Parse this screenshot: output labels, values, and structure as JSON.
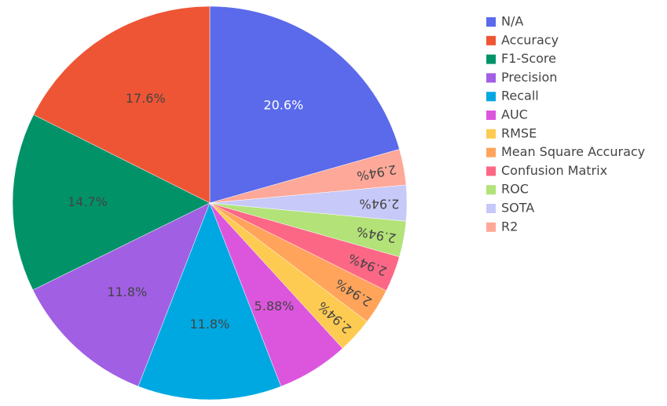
{
  "chart_data": {
    "type": "pie",
    "categories": [
      "N/A",
      "Accuracy",
      "F1-Score",
      "Precision",
      "Recall",
      "AUC",
      "RMSE",
      "Mean Square Accuracy",
      "Confusion Matrix",
      "ROC",
      "SOTA",
      "R2"
    ],
    "values": [
      20.6,
      17.6,
      14.7,
      11.8,
      11.8,
      5.88,
      2.94,
      2.94,
      2.94,
      2.94,
      2.94,
      2.94
    ],
    "value_labels": [
      "20.6%",
      "17.6%",
      "14.7%",
      "11.8%",
      "11.8%",
      "5.88%",
      "2.94%",
      "2.94%",
      "2.94%",
      "2.94%",
      "2.94%",
      "2.94%"
    ],
    "colors": [
      "#5a6aea",
      "#ee5535",
      "#019268",
      "#a15fe3",
      "#00a8e2",
      "#dc56dd",
      "#fecb52",
      "#ffa45a",
      "#fd6786",
      "#b2e278",
      "#c7c9f8",
      "#fea899"
    ],
    "legend": "right"
  }
}
